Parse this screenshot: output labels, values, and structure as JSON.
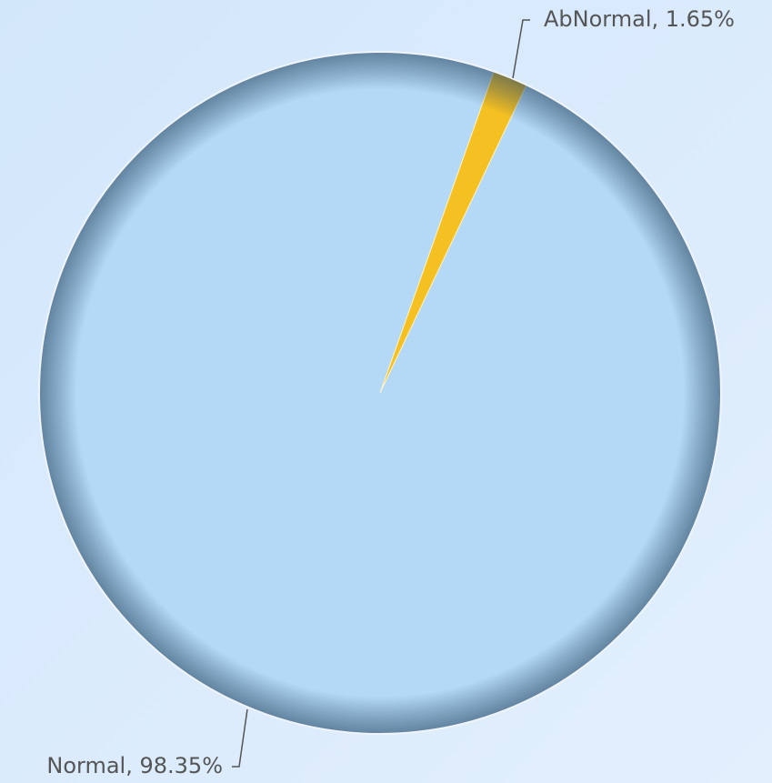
{
  "chart_data": {
    "type": "pie",
    "values": [
      98.35,
      1.65
    ],
    "value_labels": [
      "Normal, 98.35%",
      "AbNormal, 1.65%"
    ],
    "colors": [
      "#b3d9f7",
      "#f5c022"
    ]
  }
}
